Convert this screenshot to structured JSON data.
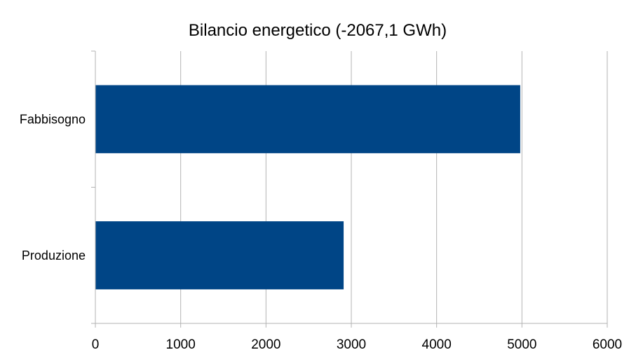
{
  "chart_data": {
    "type": "bar",
    "orientation": "horizontal",
    "title": "Bilancio energetico (-2067,1 GWh)",
    "categories": [
      "Fabbisogno",
      "Produzione"
    ],
    "values": [
      4980,
      2910
    ],
    "xlim": [
      0,
      6000
    ],
    "xticks": [
      "0",
      "1000",
      "2000",
      "3000",
      "4000",
      "5000",
      "6000"
    ],
    "grid": true,
    "legend": "none",
    "colors": {
      "bar": "#004586",
      "grid": "#b3b3b3",
      "text": "#000000"
    }
  }
}
